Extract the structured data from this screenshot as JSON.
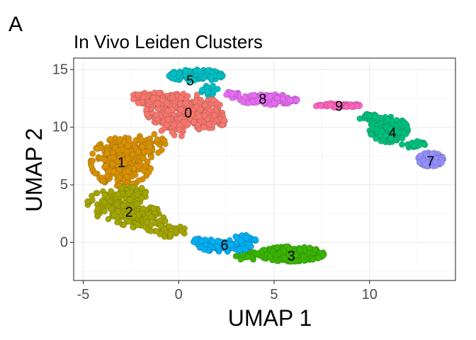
{
  "panel_letter": "A",
  "chart_data": {
    "type": "scatter",
    "title": "In Vivo Leiden Clusters",
    "xlabel": "UMAP 1",
    "ylabel": "UMAP 2",
    "xlim": [
      -5.5,
      14.5
    ],
    "ylim": [
      -3.3,
      16
    ],
    "x_ticks": [
      -5,
      0,
      5,
      10
    ],
    "x_tick_labels": [
      "-5",
      "0",
      "5",
      "10"
    ],
    "y_ticks": [
      0,
      5,
      10,
      15
    ],
    "y_tick_labels": [
      "0",
      "5",
      "10",
      "15"
    ],
    "grid": true,
    "legend": "none",
    "clusters": [
      {
        "label": "0",
        "color": "#F8766D",
        "label_pos": [
          0.5,
          11.2
        ],
        "blobs": [
          [
            0.3,
            11.4,
            2.0,
            1.5,
            260
          ],
          [
            -1.4,
            12.5,
            1.2,
            0.5,
            60
          ],
          [
            1.8,
            10.5,
            1.0,
            1.0,
            50
          ],
          [
            -0.3,
            9.9,
            1.0,
            0.8,
            30
          ]
        ]
      },
      {
        "label": "1",
        "color": "#D89000",
        "label_pos": [
          -3.0,
          6.9
        ],
        "blobs": [
          [
            -3.0,
            7.0,
            1.6,
            2.1,
            280
          ],
          [
            -1.5,
            8.5,
            0.8,
            1.0,
            40
          ]
        ]
      },
      {
        "label": "2",
        "color": "#A3A500",
        "label_pos": [
          -2.6,
          2.6
        ],
        "blobs": [
          [
            -3.4,
            3.3,
            1.4,
            1.3,
            130
          ],
          [
            -2.0,
            2.2,
            1.4,
            0.9,
            110
          ],
          [
            -0.6,
            1.0,
            1.0,
            0.5,
            50
          ],
          [
            -2.4,
            4.3,
            0.8,
            0.6,
            30
          ]
        ]
      },
      {
        "label": "3",
        "color": "#39B600",
        "label_pos": [
          5.9,
          -1.2
        ],
        "blobs": [
          [
            5.9,
            -1.0,
            1.7,
            0.65,
            240
          ],
          [
            3.6,
            -1.2,
            0.6,
            0.4,
            30
          ]
        ]
      },
      {
        "label": "4",
        "color": "#00BF7D",
        "label_pos": [
          11.2,
          9.5
        ],
        "blobs": [
          [
            11.0,
            9.8,
            1.0,
            1.1,
            150
          ],
          [
            10.0,
            10.9,
            0.6,
            0.3,
            30
          ],
          [
            12.3,
            8.5,
            0.6,
            0.3,
            30
          ]
        ]
      },
      {
        "label": "5",
        "color": "#00BFC4",
        "label_pos": [
          0.6,
          14.0
        ],
        "blobs": [
          [
            0.9,
            14.5,
            1.4,
            0.5,
            130
          ],
          [
            1.6,
            13.3,
            0.5,
            0.5,
            20
          ]
        ]
      },
      {
        "label": "6",
        "color": "#00B0F6",
        "label_pos": [
          2.4,
          -0.3
        ],
        "blobs": [
          [
            2.4,
            -0.3,
            1.4,
            0.5,
            130
          ],
          [
            3.5,
            0.3,
            0.6,
            0.4,
            40
          ],
          [
            1.2,
            0.2,
            0.6,
            0.3,
            20
          ]
        ]
      },
      {
        "label": "7",
        "color": "#9590FF",
        "label_pos": [
          13.2,
          7.0
        ],
        "blobs": [
          [
            13.2,
            7.2,
            0.65,
            0.6,
            140
          ]
        ]
      },
      {
        "label": "8",
        "color": "#E76BF3",
        "label_pos": [
          4.4,
          12.4
        ],
        "blobs": [
          [
            4.7,
            12.4,
            1.5,
            0.45,
            150
          ],
          [
            2.9,
            12.8,
            0.4,
            0.4,
            20
          ]
        ]
      },
      {
        "label": "9",
        "color": "#FF62BC",
        "label_pos": [
          8.4,
          11.8
        ],
        "blobs": [
          [
            8.3,
            11.9,
            1.2,
            0.18,
            80
          ]
        ]
      }
    ]
  }
}
